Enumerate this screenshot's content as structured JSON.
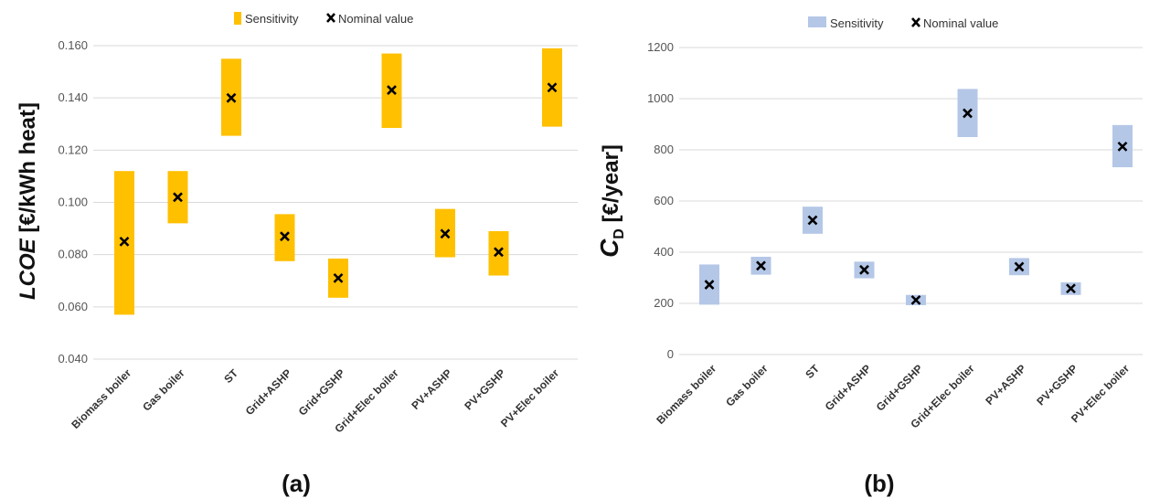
{
  "chart_data": [
    {
      "type": "bar",
      "panel_label": "(a)",
      "ylabel_main": "LCOE",
      "ylabel_unit": " [€/kWh heat]",
      "ylim": [
        0.04,
        0.16
      ],
      "yticks": [
        0.04,
        0.06,
        0.08,
        0.1,
        0.12,
        0.14,
        0.16
      ],
      "ytick_labels": [
        "0.040",
        "0.060",
        "0.080",
        "0.100",
        "0.120",
        "0.140",
        "0.160"
      ],
      "grid": true,
      "legend_position": "top-center",
      "legend": [
        "Sensitivity",
        "Nominal value"
      ],
      "categories": [
        "Biomass boiler",
        "Gas boiler",
        "ST",
        "Grid+ASHP",
        "Grid+GSHP",
        "Grid+Elec boiler",
        "PV+ASHP",
        "PV+GSHP",
        "PV+Elec boiler"
      ],
      "series": [
        {
          "name": "Sensitivity",
          "low": [
            0.057,
            0.092,
            0.1255,
            0.0775,
            0.0635,
            0.1285,
            0.079,
            0.072,
            0.129
          ],
          "high": [
            0.112,
            0.112,
            0.155,
            0.0955,
            0.0785,
            0.157,
            0.0975,
            0.089,
            0.159
          ],
          "color": "#FFC000"
        },
        {
          "name": "Nominal value",
          "values": [
            0.085,
            0.102,
            0.14,
            0.087,
            0.071,
            0.143,
            0.088,
            0.081,
            0.144
          ],
          "color": "#000000"
        }
      ]
    },
    {
      "type": "bar",
      "panel_label": "(b)",
      "ylabel_main": "C",
      "ylabel_sub": "D",
      "ylabel_unit": " [€/year]",
      "ylim": [
        0,
        1200
      ],
      "yticks": [
        0,
        200,
        400,
        600,
        800,
        1000,
        1200
      ],
      "ytick_labels": [
        "0",
        "200",
        "400",
        "600",
        "800",
        "1000",
        "1200"
      ],
      "grid": true,
      "legend_position": "top-center",
      "legend": [
        "Sensitivity",
        "Nominal value"
      ],
      "categories": [
        "Biomass boiler",
        "Gas boiler",
        "ST",
        "Grid+ASHP",
        "Grid+GSHP",
        "Grid+Elec boiler",
        "PV+ASHP",
        "PV+GSHP",
        "PV+Elec boiler"
      ],
      "series": [
        {
          "name": "Sensitivity",
          "low": [
            195,
            312,
            472,
            298,
            193,
            850,
            310,
            233,
            732
          ],
          "high": [
            352,
            382,
            578,
            363,
            233,
            1038,
            377,
            282,
            897
          ],
          "color": "#B4C7E7"
        },
        {
          "name": "Nominal value",
          "values": [
            273,
            347,
            525,
            331,
            213,
            943,
            343,
            258,
            813
          ],
          "color": "#000000"
        }
      ]
    }
  ]
}
